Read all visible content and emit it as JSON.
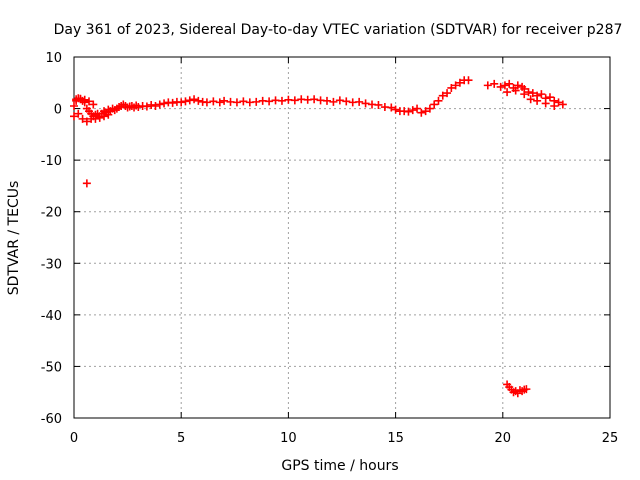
{
  "chart_data": {
    "type": "scatter",
    "title": "Day 361 of 2023, Sidereal Day-to-day VTEC variation (SDTVAR) for receiver p287",
    "xlabel": "GPS time / hours",
    "ylabel": "SDTVAR / TECUs",
    "xlim": [
      0,
      25
    ],
    "ylim": [
      -60,
      10
    ],
    "xticks": [
      0,
      5,
      10,
      15,
      20,
      25
    ],
    "yticks": [
      10,
      0,
      -10,
      -20,
      -30,
      -40,
      -50,
      -60
    ],
    "xtick_labels": [
      "0",
      "5",
      "10",
      "15",
      "20",
      "25"
    ],
    "ytick_labels": [
      "10",
      "0",
      "-10",
      "-20",
      "-30",
      "-40",
      "-50",
      "-60"
    ],
    "grid": true,
    "marker": "+",
    "color": "#ff0000",
    "series": [
      {
        "name": "SDTVAR",
        "x": [
          0.0,
          0.1,
          0.2,
          0.3,
          0.4,
          0.5,
          0.6,
          0.7,
          0.8,
          0.9,
          1.0,
          1.1,
          1.2,
          1.3,
          1.4,
          1.5,
          1.6,
          1.7,
          1.8,
          1.9,
          2.0,
          2.1,
          2.2,
          2.3,
          2.4,
          2.5,
          2.6,
          2.7,
          2.8,
          2.9,
          3.0,
          3.2,
          3.4,
          3.6,
          3.8,
          4.0,
          4.2,
          4.4,
          4.6,
          4.8,
          5.0,
          5.2,
          5.4,
          5.6,
          5.8,
          6.0,
          6.2,
          6.5,
          6.8,
          7.0,
          7.3,
          7.6,
          7.9,
          8.2,
          8.5,
          8.8,
          9.1,
          9.4,
          9.7,
          10.0,
          10.3,
          10.6,
          10.9,
          11.2,
          11.5,
          11.8,
          12.1,
          12.4,
          12.7,
          13.0,
          13.3,
          13.6,
          13.9,
          14.2,
          14.5,
          14.8,
          15.0,
          15.2,
          15.4,
          15.6,
          15.8,
          16.0,
          16.2,
          16.4,
          16.6,
          16.8,
          17.0,
          17.2,
          17.4,
          17.6,
          17.8,
          18.0,
          18.2,
          18.4,
          0.0,
          0.2,
          0.4,
          0.6,
          0.8,
          1.0,
          1.2,
          1.4,
          1.6,
          0.1,
          0.3,
          0.5,
          0.7,
          0.9,
          19.3,
          19.6,
          19.9,
          20.1,
          20.3,
          20.5,
          20.7,
          20.9,
          21.0,
          21.2,
          21.4,
          21.6,
          21.8,
          22.0,
          22.2,
          22.4,
          22.6,
          22.8,
          20.2,
          20.6,
          21.0,
          21.3,
          21.6,
          22.0,
          22.4,
          0.6,
          20.2,
          20.3,
          20.4,
          20.5,
          20.6,
          20.7,
          20.8,
          20.9,
          21.0,
          21.1
        ],
        "y": [
          0.5,
          1.5,
          2.0,
          1.8,
          1.5,
          1.2,
          0.0,
          -0.5,
          -1.0,
          -1.5,
          -1.2,
          -1.0,
          -1.5,
          -1.0,
          -0.5,
          -0.8,
          -0.2,
          -0.5,
          0.0,
          -0.3,
          0.0,
          0.3,
          0.5,
          0.8,
          0.5,
          0.2,
          0.4,
          0.5,
          0.2,
          0.6,
          0.3,
          0.5,
          0.4,
          0.7,
          0.5,
          0.8,
          1.0,
          1.2,
          1.1,
          1.3,
          1.2,
          1.4,
          1.6,
          1.8,
          1.5,
          1.3,
          1.2,
          1.4,
          1.2,
          1.5,
          1.3,
          1.2,
          1.4,
          1.2,
          1.3,
          1.5,
          1.4,
          1.6,
          1.5,
          1.7,
          1.6,
          1.8,
          1.7,
          1.8,
          1.6,
          1.5,
          1.3,
          1.6,
          1.4,
          1.2,
          1.3,
          1.0,
          0.8,
          0.7,
          0.3,
          0.2,
          -0.2,
          -0.5,
          -0.5,
          -0.6,
          -0.3,
          0.0,
          -0.8,
          -0.5,
          0.0,
          0.8,
          1.5,
          2.5,
          3.0,
          4.0,
          4.5,
          5.0,
          5.5,
          5.5,
          -1.5,
          -1.0,
          -2.0,
          -2.5,
          -2.0,
          -2.0,
          -1.8,
          -1.5,
          -1.2,
          1.8,
          1.9,
          1.7,
          1.4,
          0.8,
          4.5,
          4.8,
          4.2,
          4.5,
          4.8,
          4.0,
          4.5,
          4.2,
          3.8,
          3.2,
          3.0,
          2.5,
          2.8,
          2.0,
          2.2,
          1.5,
          1.2,
          0.8,
          3.2,
          3.5,
          2.8,
          1.8,
          1.5,
          1.0,
          0.5,
          -14.5,
          -53.5,
          -54.0,
          -54.5,
          -55.0,
          -54.8,
          -55.2,
          -54.6,
          -54.8,
          -54.5,
          -54.4
        ]
      }
    ]
  }
}
